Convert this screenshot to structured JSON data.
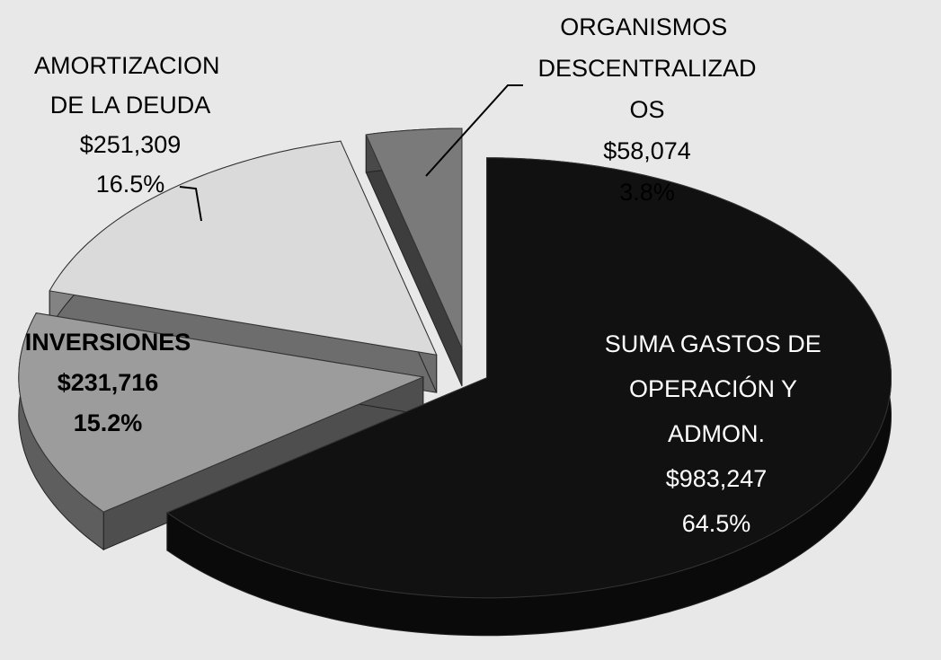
{
  "chart_data": {
    "type": "pie3d",
    "categories": [
      "SUMA GASTOS DE OPERACIÓN Y ADMON.",
      "INVERSIONES",
      "AMORTIZACION DE LA DEUDA",
      "ORGANISMOS DESCENTRALIZADOS"
    ],
    "values": [
      983247,
      231716,
      251309,
      58074
    ],
    "value_labels": [
      "$983,247",
      "$231,716",
      "$251,309",
      "$58,074"
    ],
    "percentages": [
      64.5,
      15.2,
      16.5,
      3.8
    ],
    "percentage_labels": [
      "64.5%",
      "15.2%",
      "16.5%",
      "3.8%"
    ],
    "colors": [
      "#111111",
      "#9c9c9c",
      "#dadada",
      "#7a7a7a"
    ]
  }
}
